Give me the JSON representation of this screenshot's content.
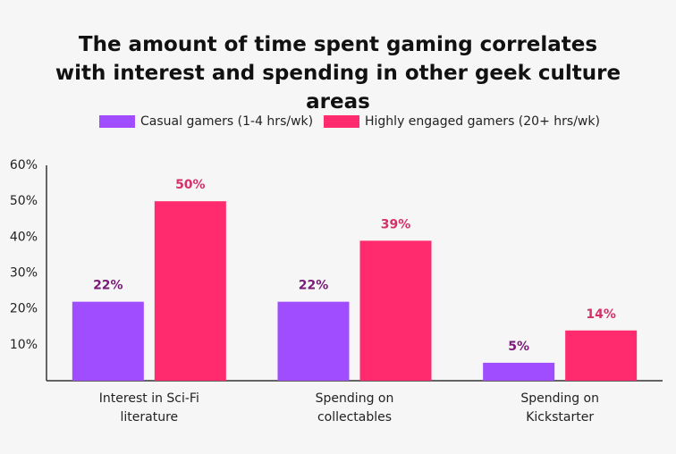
{
  "chart_data": {
    "type": "bar",
    "title": "The amount of time spent gaming correlates with interest and spending in other geek culture areas",
    "categories": [
      "Interest in Sci-Fi literature",
      "Spending on collectables",
      "Spending on Kickstarter"
    ],
    "series": [
      {
        "name": "Casual gamers (1-4 hrs/wk)",
        "color": "#a04cff",
        "label_color": "#7a1a78",
        "values": [
          22,
          22,
          5
        ],
        "value_labels": [
          "22%",
          "22%",
          "5%"
        ]
      },
      {
        "name": "Highly engaged gamers (20+ hrs/wk)",
        "color": "#ff2b6e",
        "label_color": "#d5306a",
        "values": [
          50,
          39,
          14
        ],
        "value_labels": [
          "50%",
          "39%",
          "14%"
        ]
      }
    ],
    "ylim": [
      0,
      60
    ],
    "yticks": [
      {
        "value": 10,
        "label": "10%"
      },
      {
        "value": 20,
        "label": "20%"
      },
      {
        "value": 30,
        "label": "30%"
      },
      {
        "value": 40,
        "label": "40%"
      },
      {
        "value": 50,
        "label": "50%"
      },
      {
        "value": 60,
        "label": "60%"
      }
    ],
    "grid": false
  }
}
